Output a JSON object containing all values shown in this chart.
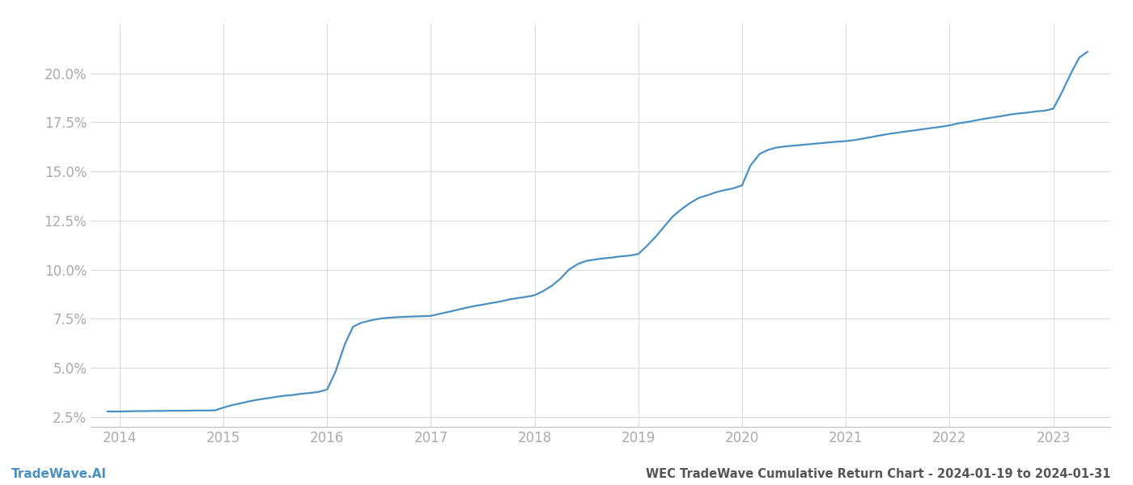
{
  "title": "WEC TradeWave Cumulative Return Chart - 2024-01-19 to 2024-01-31",
  "watermark": "TradeWave.AI",
  "line_color": "#4a90c4",
  "background_color": "#ffffff",
  "grid_color": "#cccccc",
  "x_years": [
    2014,
    2015,
    2016,
    2017,
    2018,
    2019,
    2020,
    2021,
    2022,
    2023
  ],
  "x_values": [
    2013.88,
    2014.0,
    2014.08,
    2014.17,
    2014.25,
    2014.33,
    2014.42,
    2014.5,
    2014.58,
    2014.67,
    2014.75,
    2014.83,
    2014.92,
    2015.0,
    2015.08,
    2015.17,
    2015.25,
    2015.33,
    2015.42,
    2015.5,
    2015.58,
    2015.67,
    2015.75,
    2015.83,
    2015.92,
    2016.0,
    2016.08,
    2016.17,
    2016.25,
    2016.33,
    2016.42,
    2016.5,
    2016.58,
    2016.67,
    2016.75,
    2016.83,
    2016.92,
    2017.0,
    2017.08,
    2017.17,
    2017.25,
    2017.33,
    2017.42,
    2017.5,
    2017.58,
    2017.67,
    2017.75,
    2017.83,
    2017.92,
    2018.0,
    2018.08,
    2018.17,
    2018.25,
    2018.33,
    2018.42,
    2018.5,
    2018.58,
    2018.67,
    2018.75,
    2018.83,
    2018.92,
    2019.0,
    2019.08,
    2019.17,
    2019.25,
    2019.33,
    2019.42,
    2019.5,
    2019.58,
    2019.67,
    2019.75,
    2019.83,
    2019.92,
    2020.0,
    2020.08,
    2020.17,
    2020.25,
    2020.33,
    2020.42,
    2020.5,
    2020.58,
    2020.67,
    2020.75,
    2020.83,
    2020.92,
    2021.0,
    2021.08,
    2021.17,
    2021.25,
    2021.33,
    2021.42,
    2021.5,
    2021.58,
    2021.67,
    2021.75,
    2021.83,
    2021.92,
    2022.0,
    2022.08,
    2022.17,
    2022.25,
    2022.33,
    2022.42,
    2022.5,
    2022.58,
    2022.67,
    2022.75,
    2022.83,
    2022.92,
    2023.0,
    2023.08,
    2023.17,
    2023.25,
    2023.33
  ],
  "y_values": [
    2.78,
    2.78,
    2.79,
    2.8,
    2.8,
    2.81,
    2.81,
    2.82,
    2.82,
    2.82,
    2.83,
    2.83,
    2.84,
    2.98,
    3.1,
    3.2,
    3.3,
    3.38,
    3.45,
    3.52,
    3.58,
    3.62,
    3.68,
    3.72,
    3.78,
    3.9,
    4.8,
    6.2,
    7.1,
    7.3,
    7.42,
    7.5,
    7.55,
    7.58,
    7.6,
    7.62,
    7.63,
    7.65,
    7.75,
    7.85,
    7.95,
    8.05,
    8.15,
    8.22,
    8.3,
    8.38,
    8.48,
    8.55,
    8.62,
    8.7,
    8.9,
    9.2,
    9.55,
    10.0,
    10.3,
    10.45,
    10.52,
    10.58,
    10.62,
    10.68,
    10.72,
    10.8,
    11.2,
    11.7,
    12.2,
    12.7,
    13.1,
    13.4,
    13.65,
    13.8,
    13.95,
    14.05,
    14.15,
    14.3,
    15.3,
    15.9,
    16.1,
    16.22,
    16.28,
    16.32,
    16.36,
    16.4,
    16.44,
    16.48,
    16.52,
    16.55,
    16.6,
    16.68,
    16.76,
    16.84,
    16.92,
    16.98,
    17.04,
    17.1,
    17.16,
    17.22,
    17.28,
    17.35,
    17.45,
    17.52,
    17.6,
    17.68,
    17.76,
    17.82,
    17.9,
    17.96,
    18.0,
    18.06,
    18.1,
    18.2,
    19.0,
    20.0,
    20.8,
    21.1
  ],
  "ylim": [
    2.0,
    22.5
  ],
  "yticks": [
    2.5,
    5.0,
    7.5,
    10.0,
    12.5,
    15.0,
    17.5,
    20.0
  ],
  "xlim": [
    2013.72,
    2023.55
  ],
  "title_fontsize": 10.5,
  "watermark_fontsize": 11,
  "tick_label_color": "#aaaaaa",
  "title_color": "#555555",
  "watermark_color": "#4a90c4",
  "line_width": 1.6
}
